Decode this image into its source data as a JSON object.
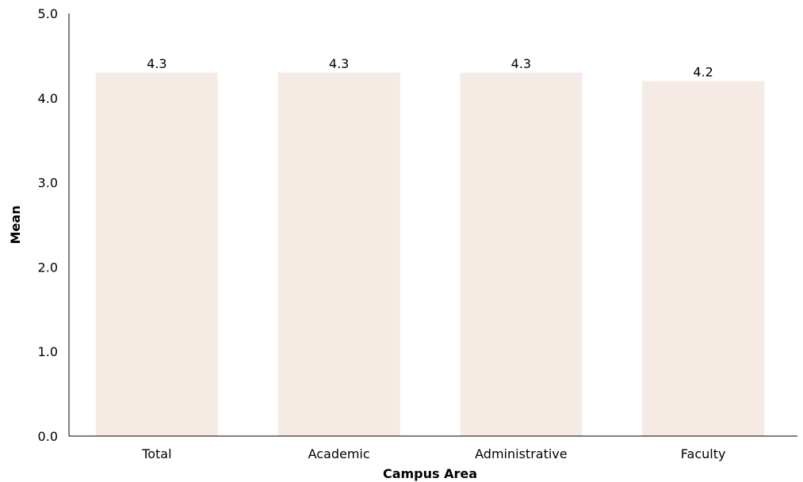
{
  "chart_data": {
    "type": "bar",
    "categories": [
      "Total",
      "Academic",
      "Administrative",
      "Faculty"
    ],
    "values": [
      4.3,
      4.3,
      4.3,
      4.2
    ],
    "data_labels": [
      "4.3",
      "4.3",
      "4.3",
      "4.2"
    ],
    "xlabel": "Campus Area",
    "ylabel": "Mean",
    "ylim": [
      0,
      5
    ],
    "yticks": [
      "0.0",
      "1.0",
      "2.0",
      "3.0",
      "4.0",
      "5.0"
    ],
    "grid": false,
    "bar_color": "#f5ebe4"
  }
}
